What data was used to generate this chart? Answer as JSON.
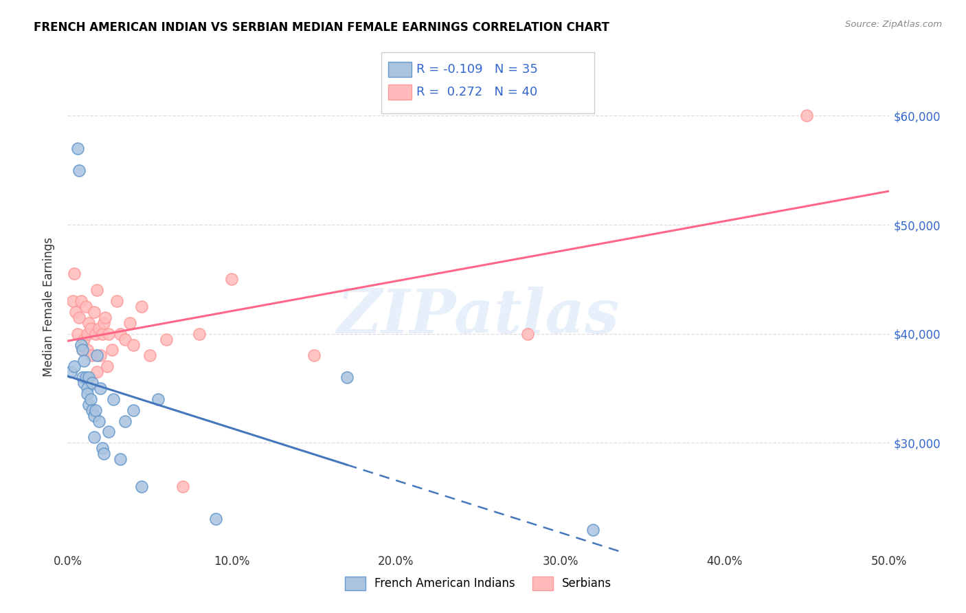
{
  "title": "FRENCH AMERICAN INDIAN VS SERBIAN MEDIAN FEMALE EARNINGS CORRELATION CHART",
  "source": "Source: ZipAtlas.com",
  "ylabel": "Median Female Earnings",
  "right_yticks": [
    "$60,000",
    "$50,000",
    "$40,000",
    "$30,000"
  ],
  "right_ytick_values": [
    60000,
    50000,
    40000,
    30000
  ],
  "legend_label1": "French American Indians",
  "legend_label2": "Serbians",
  "color_blue": "#6699CC",
  "color_blue_light": "#AAC4E0",
  "color_pink": "#FF9999",
  "color_pink_light": "#FFBBBB",
  "color_line_blue": "#4477BB",
  "color_line_pink": "#FF6688",
  "color_legend_text": "#3366CC",
  "watermark": "ZIPatlas",
  "xlim": [
    0,
    0.5
  ],
  "ylim": [
    20000,
    65000
  ],
  "french_x": [
    0.002,
    0.004,
    0.006,
    0.007,
    0.008,
    0.009,
    0.009,
    0.01,
    0.01,
    0.011,
    0.012,
    0.012,
    0.013,
    0.013,
    0.014,
    0.015,
    0.015,
    0.016,
    0.016,
    0.017,
    0.018,
    0.019,
    0.02,
    0.021,
    0.022,
    0.025,
    0.028,
    0.032,
    0.035,
    0.04,
    0.045,
    0.055,
    0.09,
    0.17,
    0.32
  ],
  "french_y": [
    36500,
    37000,
    57000,
    55000,
    39000,
    38500,
    36000,
    37500,
    35500,
    36000,
    35000,
    34500,
    33500,
    36000,
    34000,
    35500,
    33000,
    32500,
    30500,
    33000,
    38000,
    32000,
    35000,
    29500,
    29000,
    31000,
    34000,
    28500,
    32000,
    33000,
    26000,
    34000,
    23000,
    36000,
    22000
  ],
  "serbian_x": [
    0.003,
    0.004,
    0.005,
    0.006,
    0.007,
    0.008,
    0.009,
    0.01,
    0.011,
    0.012,
    0.012,
    0.013,
    0.014,
    0.015,
    0.016,
    0.017,
    0.018,
    0.018,
    0.019,
    0.02,
    0.021,
    0.022,
    0.023,
    0.024,
    0.025,
    0.027,
    0.03,
    0.032,
    0.035,
    0.038,
    0.04,
    0.045,
    0.05,
    0.06,
    0.07,
    0.08,
    0.1,
    0.15,
    0.28,
    0.45
  ],
  "serbian_y": [
    43000,
    45500,
    42000,
    40000,
    41500,
    43000,
    38500,
    39500,
    42500,
    40000,
    38500,
    41000,
    40500,
    38000,
    42000,
    40000,
    36500,
    44000,
    40500,
    38000,
    40000,
    41000,
    41500,
    37000,
    40000,
    38500,
    43000,
    40000,
    39500,
    41000,
    39000,
    42500,
    38000,
    39500,
    26000,
    40000,
    45000,
    38000,
    40000,
    60000
  ],
  "line_blue_x0": 0.0,
  "line_blue_x1": 0.5,
  "line_blue_solid_end": 0.17,
  "line_pink_x0": 0.0,
  "line_pink_x1": 0.5
}
